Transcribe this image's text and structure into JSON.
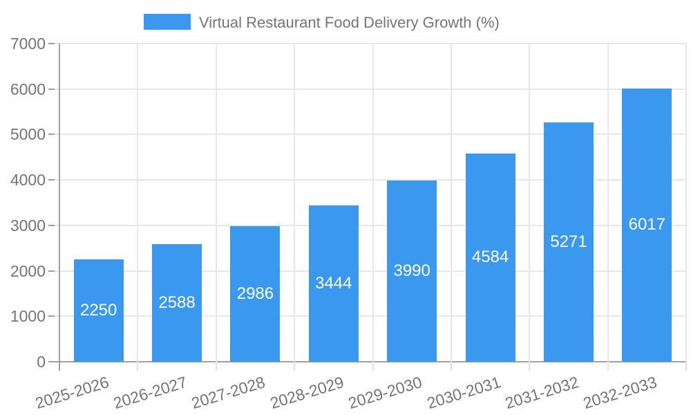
{
  "legend": {
    "label": "Virtual Restaurant Food Delivery Growth (%)"
  },
  "chart_data": {
    "type": "bar",
    "title": "Virtual Restaurant Food Delivery Growth (%)",
    "categories": [
      "2025-2026",
      "2026-2027",
      "2027-2028",
      "2028-2029",
      "2029-2030",
      "2030-2031",
      "2031-2032",
      "2032-2033"
    ],
    "values": [
      2250,
      2588,
      2986,
      3444,
      3990,
      4584,
      5271,
      6017
    ],
    "yticks": [
      0,
      1000,
      2000,
      3000,
      4000,
      5000,
      6000,
      7000
    ],
    "ylim": [
      0,
      7000
    ],
    "grid": true,
    "legend_position": "top-center",
    "xlabel": "",
    "ylabel": "",
    "bar_color": "#3A99EF",
    "value_label_color": "#ffffff",
    "axis_label_color": "#757575",
    "gridline_color": "#e7e7e7",
    "axis_line_color": "#a0a0a0"
  }
}
